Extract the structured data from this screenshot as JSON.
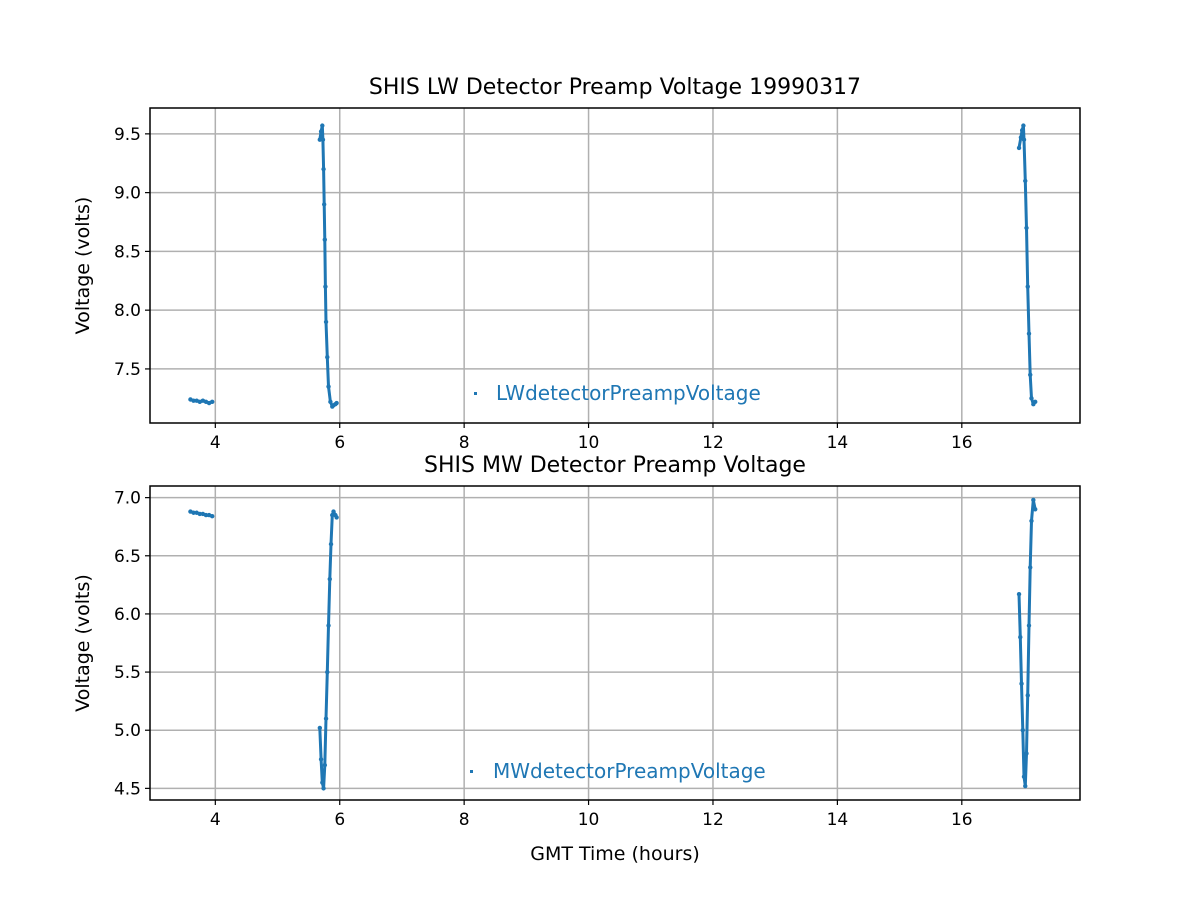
{
  "chart_data": [
    {
      "type": "scatter",
      "title": "SHIS LW Detector Preamp Voltage 19990317",
      "xlabel": "",
      "ylabel": "Voltage (volts)",
      "xlim": [
        2.95,
        17.9
      ],
      "ylim": [
        7.04,
        9.72
      ],
      "xticks": [
        "4",
        "6",
        "8",
        "10",
        "12",
        "14",
        "16"
      ],
      "yticks": [
        "7.5",
        "8.0",
        "8.5",
        "9.0",
        "9.5"
      ],
      "grid": true,
      "legend": {
        "position": "lower-center",
        "entries": [
          "LWdetectorPreampVoltage"
        ]
      },
      "series": [
        {
          "name": "LWdetectorPreampVoltage",
          "color": "#1f77b4",
          "segments": [
            {
              "x": [
                3.6,
                3.65,
                3.7,
                3.75,
                3.8,
                3.85,
                3.9,
                3.95
              ],
              "y": [
                7.24,
                7.23,
                7.23,
                7.22,
                7.23,
                7.22,
                7.21,
                7.22
              ]
            },
            {
              "x": [
                5.68,
                5.7,
                5.72,
                5.73,
                5.74,
                5.75,
                5.76,
                5.77,
                5.78,
                5.8,
                5.82,
                5.85,
                5.88,
                5.9,
                5.93,
                5.95
              ],
              "y": [
                9.45,
                9.52,
                9.57,
                9.45,
                9.2,
                8.9,
                8.6,
                8.2,
                7.9,
                7.6,
                7.35,
                7.22,
                7.18,
                7.19,
                7.2,
                7.21
              ]
            },
            {
              "x": [
                16.92,
                16.95,
                16.97,
                16.99,
                17.0,
                17.02,
                17.04,
                17.06,
                17.08,
                17.1,
                17.12,
                17.15,
                17.18
              ],
              "y": [
                9.38,
                9.47,
                9.53,
                9.57,
                9.45,
                9.1,
                8.7,
                8.2,
                7.8,
                7.45,
                7.25,
                7.2,
                7.22
              ]
            }
          ]
        }
      ]
    },
    {
      "type": "scatter",
      "title": "SHIS MW Detector Preamp Voltage",
      "xlabel": "GMT Time (hours)",
      "ylabel": "Voltage (volts)",
      "xlim": [
        2.95,
        17.9
      ],
      "ylim": [
        4.4,
        7.1
      ],
      "xticks": [
        "4",
        "6",
        "8",
        "10",
        "12",
        "14",
        "16"
      ],
      "yticks": [
        "4.5",
        "5.0",
        "5.5",
        "6.0",
        "6.5",
        "7.0"
      ],
      "grid": true,
      "legend": {
        "position": "lower-center",
        "entries": [
          "MWdetectorPreampVoltage"
        ]
      },
      "series": [
        {
          "name": "MWdetectorPreampVoltage",
          "color": "#1f77b4",
          "segments": [
            {
              "x": [
                3.6,
                3.65,
                3.7,
                3.75,
                3.8,
                3.85,
                3.9,
                3.95
              ],
              "y": [
                6.88,
                6.87,
                6.87,
                6.86,
                6.86,
                6.85,
                6.85,
                6.84
              ]
            },
            {
              "x": [
                5.68,
                5.7,
                5.72,
                5.74,
                5.76,
                5.78,
                5.8,
                5.82,
                5.84,
                5.86,
                5.88,
                5.9,
                5.93,
                5.95
              ],
              "y": [
                5.02,
                4.75,
                4.55,
                4.5,
                4.7,
                5.1,
                5.5,
                5.9,
                6.3,
                6.6,
                6.85,
                6.88,
                6.85,
                6.83
              ]
            },
            {
              "x": [
                16.92,
                16.94,
                16.96,
                16.98,
                17.0,
                17.02,
                17.04,
                17.06,
                17.08,
                17.1,
                17.12,
                17.15,
                17.18
              ],
              "y": [
                6.17,
                5.8,
                5.4,
                5.0,
                4.6,
                4.52,
                4.8,
                5.3,
                5.9,
                6.4,
                6.8,
                6.98,
                6.9
              ]
            }
          ]
        }
      ]
    }
  ]
}
